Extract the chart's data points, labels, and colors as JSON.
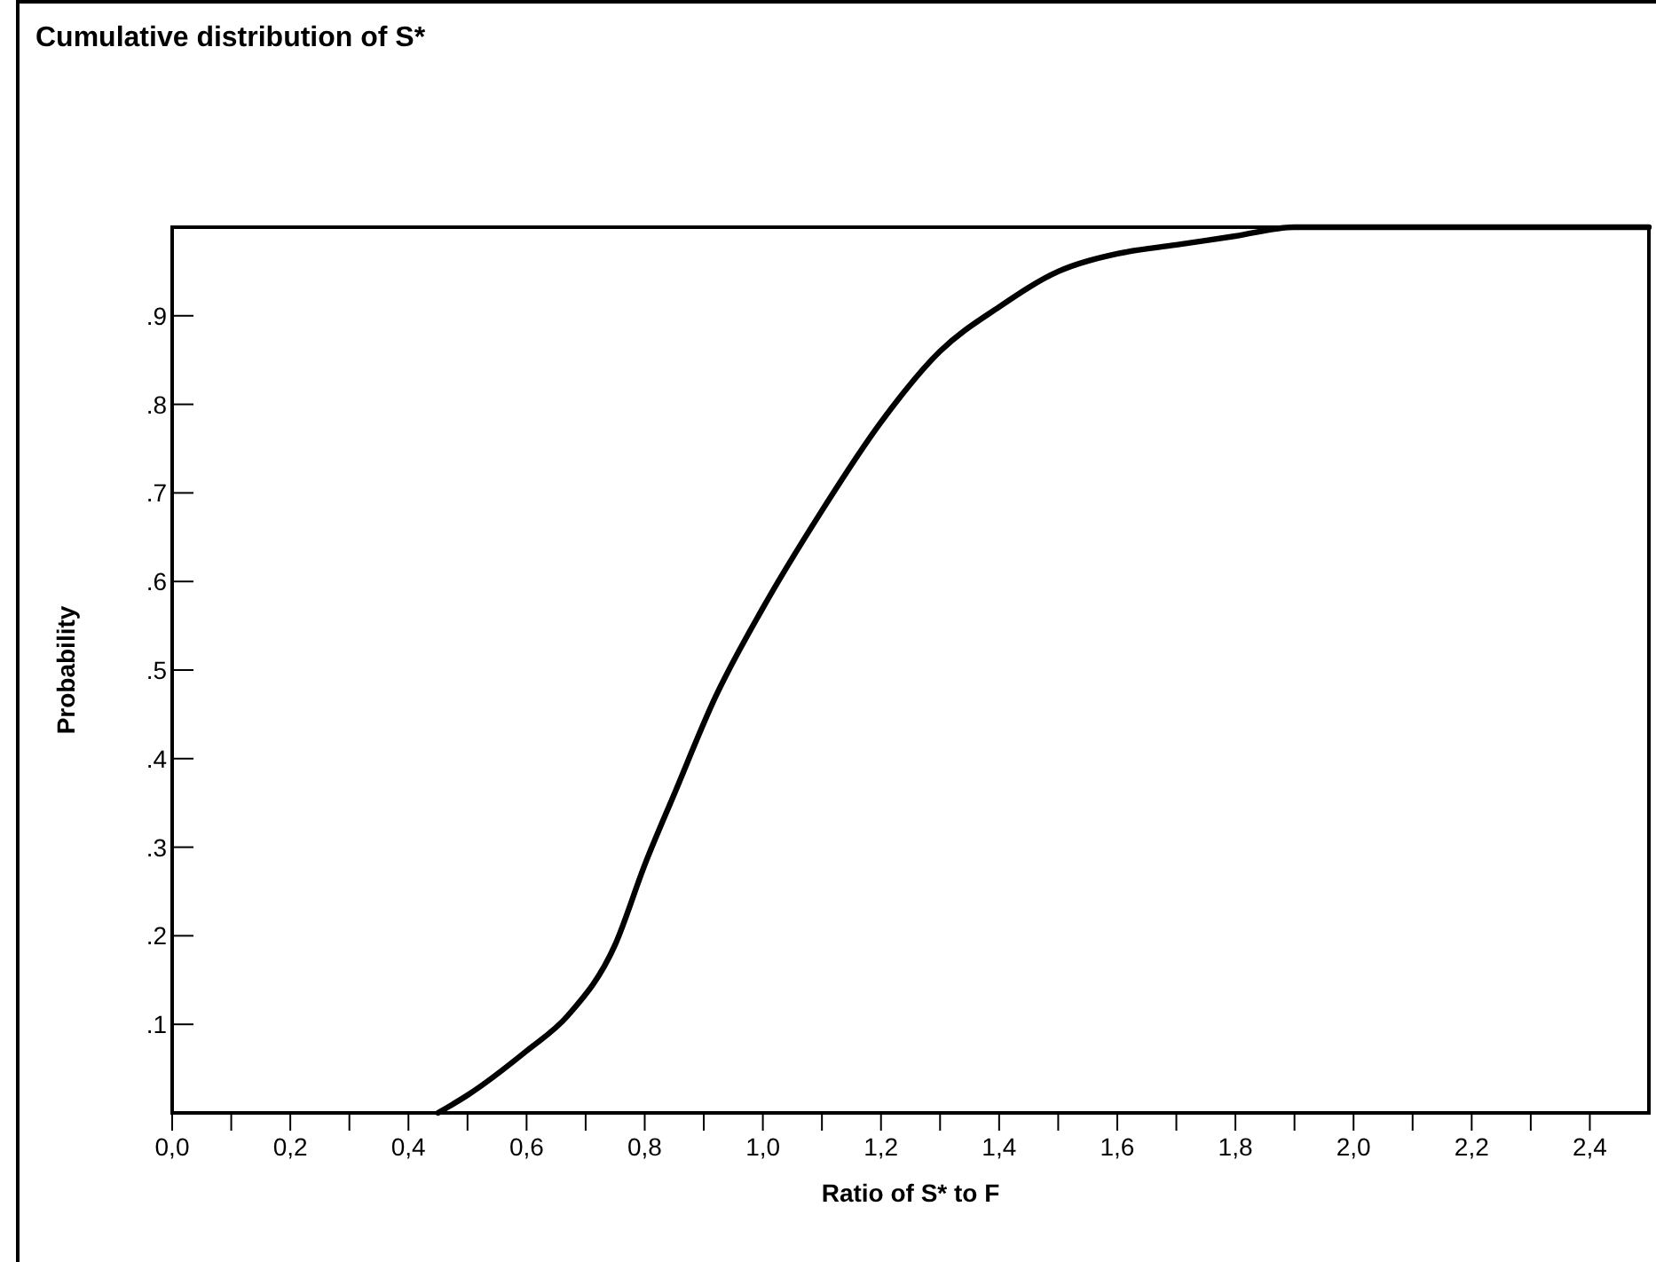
{
  "chart_data": {
    "type": "line",
    "title": "Cumulative distribution of S*",
    "xlabel": "Ratio of S* to F",
    "ylabel": "Probability",
    "series": [
      {
        "color": "#000000",
        "x": [
          0.45,
          0.5,
          0.6,
          0.67,
          0.75,
          0.8,
          0.85,
          0.92,
          1.0,
          1.1,
          1.2,
          1.3,
          1.4,
          1.5,
          1.6,
          1.7,
          1.8,
          1.9,
          2.0,
          2.2,
          2.5
        ],
        "values": [
          0,
          0.02,
          0.07,
          0.11,
          0.19,
          0.28,
          0.36,
          0.47,
          0.57,
          0.68,
          0.78,
          0.86,
          0.91,
          0.95,
          0.97,
          0.98,
          0.99,
          1.0,
          1.0,
          1.0,
          1.0
        ]
      }
    ],
    "xlim": [
      0,
      2.5
    ],
    "ylim": [
      0,
      1
    ],
    "xticks": [
      {
        "value": 0,
        "label": "0,0"
      },
      {
        "value": 0.1,
        "label": null
      },
      {
        "value": 0.2,
        "label": "0,2"
      },
      {
        "value": 0.3,
        "label": null
      },
      {
        "value": 0.4,
        "label": "0,4"
      },
      {
        "value": 0.5,
        "label": null
      },
      {
        "value": 0.6,
        "label": "0,6"
      },
      {
        "value": 0.7,
        "label": null
      },
      {
        "value": 0.8,
        "label": "0,8"
      },
      {
        "value": 0.9,
        "label": null
      },
      {
        "value": 1.0,
        "label": "1,0"
      },
      {
        "value": 1.1,
        "label": null
      },
      {
        "value": 1.2,
        "label": "1,2"
      },
      {
        "value": 1.3,
        "label": null
      },
      {
        "value": 1.4,
        "label": "1,4"
      },
      {
        "value": 1.5,
        "label": null
      },
      {
        "value": 1.6,
        "label": "1,6"
      },
      {
        "value": 1.7,
        "label": null
      },
      {
        "value": 1.8,
        "label": "1,8"
      },
      {
        "value": 1.9,
        "label": null
      },
      {
        "value": 2.0,
        "label": "2,0"
      },
      {
        "value": 2.1,
        "label": null
      },
      {
        "value": 2.2,
        "label": "2,2"
      },
      {
        "value": 2.3,
        "label": null
      },
      {
        "value": 2.4,
        "label": "2,4"
      }
    ],
    "yticks": [
      {
        "value": 0.1,
        "label": ".1"
      },
      {
        "value": 0.2,
        "label": ".2"
      },
      {
        "value": 0.3,
        "label": ".3"
      },
      {
        "value": 0.4,
        "label": ".4"
      },
      {
        "value": 0.5,
        "label": ".5"
      },
      {
        "value": 0.6,
        "label": ".6"
      },
      {
        "value": 0.7,
        "label": ".7"
      },
      {
        "value": 0.8,
        "label": ".8"
      },
      {
        "value": 0.9,
        "label": ".9"
      }
    ],
    "grid": false,
    "marker": "none",
    "line_style": "solid"
  }
}
